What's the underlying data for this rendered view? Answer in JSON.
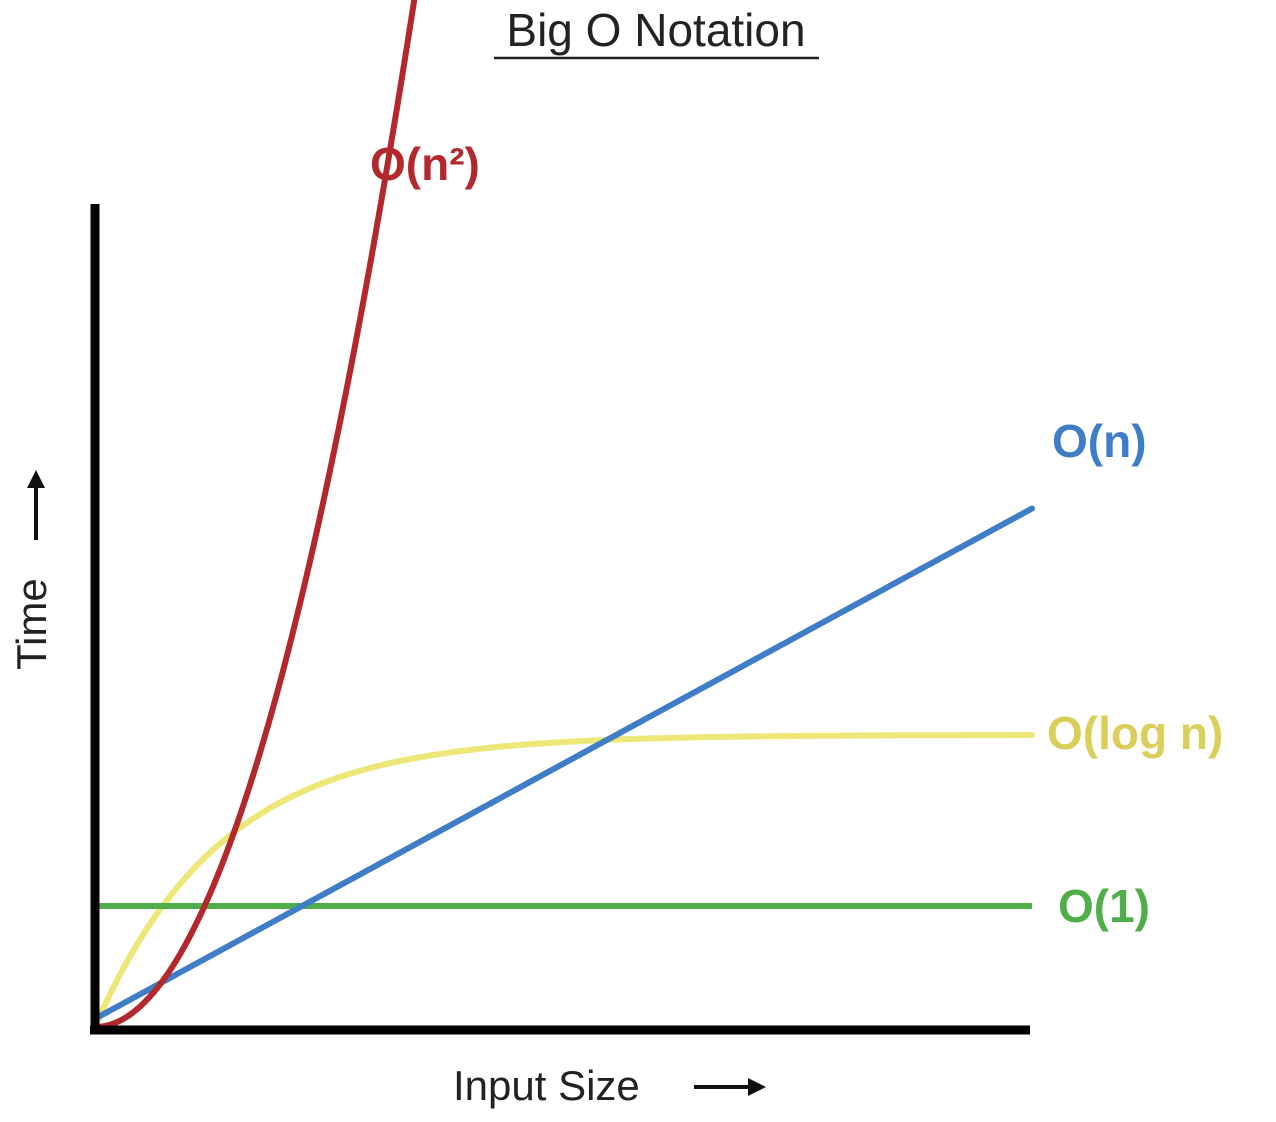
{
  "chart_data": {
    "type": "line",
    "title": "Big O Notation",
    "xlabel": "Input Size",
    "ylabel": "Time",
    "xlim": [
      0,
      10
    ],
    "ylim": [
      0,
      10
    ],
    "grid": false,
    "legend": "inline labels at line ends",
    "series": [
      {
        "name": "O(n²)",
        "color": "#b3282d",
        "function": "quadratic"
      },
      {
        "name": "O(n)",
        "color": "#3f7dc6",
        "function": "linear"
      },
      {
        "name": "O(log n)",
        "color": "#ece776",
        "function": "logarithmic"
      },
      {
        "name": "O(1)",
        "color": "#4fae49",
        "function": "constant"
      }
    ]
  },
  "colors": {
    "axis": "#000000",
    "text": "#222222",
    "quadratic": "#b3282d",
    "linear": "#3f7dc6",
    "logarithmic": "#ece776",
    "logarithmic_label": "#d9cf5a",
    "constant": "#4fae49"
  }
}
